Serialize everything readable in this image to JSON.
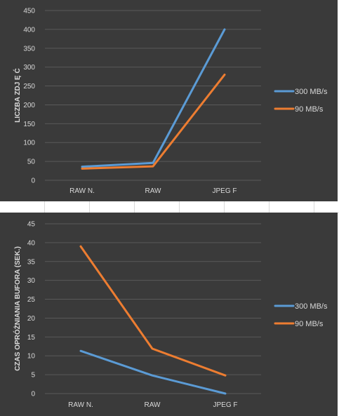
{
  "chart_data": [
    {
      "type": "line",
      "categories": [
        "RAW N.",
        "RAW",
        "JPEG F"
      ],
      "ylabel": "LICZBA ZDJ Ę Ć",
      "ylim": [
        0,
        450
      ],
      "yticks": [
        0,
        50,
        100,
        150,
        200,
        250,
        300,
        350,
        400,
        450
      ],
      "grid": true,
      "legend": "right",
      "series": [
        {
          "name": "300 MB/s",
          "color": "#5b9bd5",
          "values": [
            36,
            46,
            400
          ]
        },
        {
          "name": "90 MB/s",
          "color": "#ed7d31",
          "values": [
            31,
            37,
            280
          ]
        }
      ]
    },
    {
      "type": "line",
      "categories": [
        "RAW N.",
        "RAW",
        "JPEG F"
      ],
      "ylabel": "CZAS OPRÓŻNIANIA BUFORA (SEK.)",
      "ylim": [
        0,
        45
      ],
      "yticks": [
        0,
        5,
        10,
        15,
        20,
        25,
        30,
        35,
        40,
        45
      ],
      "grid": true,
      "legend": "right",
      "series": [
        {
          "name": "300 MB/s",
          "color": "#5b9bd5",
          "values": [
            11.3,
            4.8,
            0
          ]
        },
        {
          "name": "90 MB/s",
          "color": "#ed7d31",
          "values": [
            39,
            11.9,
            4.8
          ]
        }
      ]
    }
  ]
}
